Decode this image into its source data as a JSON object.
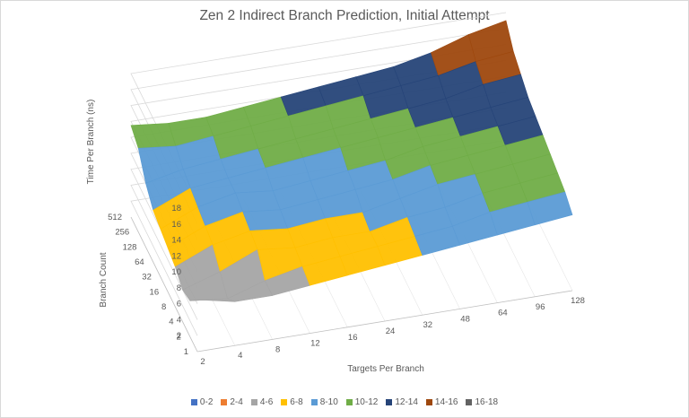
{
  "chart_data": {
    "type": "surface",
    "title": "Zen 2 Indirect Branch Prediction, Initial Attempt",
    "xlabel": "Targets Per Branch",
    "ylabel": "Branch Count",
    "zlabel": "Time Per Branch (ns)",
    "x_categories": [
      "2",
      "4",
      "8",
      "12",
      "16",
      "24",
      "32",
      "48",
      "64",
      "96",
      "128"
    ],
    "y_categories": [
      "1",
      "2",
      "4",
      "8",
      "16",
      "32",
      "64",
      "128",
      "256",
      "512"
    ],
    "z_ticks": [
      "2",
      "4",
      "6",
      "8",
      "10",
      "12",
      "14",
      "16",
      "18"
    ],
    "zlim": [
      0,
      18
    ],
    "legend_position": "bottom",
    "bands": [
      {
        "label": "0-2",
        "color": "#4472c4"
      },
      {
        "label": "2-4",
        "color": "#ed7d31"
      },
      {
        "label": "4-6",
        "color": "#a5a5a5"
      },
      {
        "label": "6-8",
        "color": "#ffc000"
      },
      {
        "label": "8-10",
        "color": "#5b9bd5"
      },
      {
        "label": "10-12",
        "color": "#70ad47"
      },
      {
        "label": "12-14",
        "color": "#264478"
      },
      {
        "label": "14-16",
        "color": "#9e480e"
      },
      {
        "label": "16-18",
        "color": "#636363"
      }
    ],
    "values": [
      [
        6.5,
        4.5,
        4.0,
        5.0,
        5.5,
        6.0,
        6.5,
        8.0,
        10.5,
        11.5
      ],
      [
        5.5,
        4.0,
        5.5,
        7.0,
        7.5,
        8.0,
        8.5,
        9.0,
        10.0,
        11.0
      ],
      [
        5.5,
        5.5,
        7.5,
        8.0,
        8.5,
        9.0,
        9.0,
        9.5,
        10.5,
        11.0
      ],
      [
        6.0,
        6.5,
        7.0,
        7.5,
        8.0,
        8.5,
        9.5,
        10.0,
        11.0,
        11.5
      ],
      [
        6.5,
        7.0,
        7.5,
        8.0,
        8.5,
        9.0,
        10.0,
        10.5,
        11.5,
        12.0
      ],
      [
        7.0,
        7.5,
        7.5,
        8.0,
        9.0,
        9.5,
        10.5,
        11.0,
        12.0,
        12.5
      ],
      [
        7.5,
        8.0,
        8.5,
        9.0,
        9.5,
        10.0,
        11.0,
        11.5,
        12.5,
        13.0
      ],
      [
        8.0,
        8.5,
        9.0,
        10.0,
        10.5,
        11.0,
        11.5,
        12.0,
        13.0,
        13.5
      ],
      [
        8.5,
        9.5,
        10.0,
        10.5,
        11.0,
        11.5,
        12.0,
        12.5,
        13.5,
        14.5
      ],
      [
        9.0,
        10.0,
        10.5,
        11.0,
        11.5,
        12.0,
        12.5,
        13.5,
        14.5,
        16.0
      ],
      [
        9.5,
        10.5,
        11.0,
        11.5,
        12.0,
        12.5,
        13.0,
        14.0,
        15.0,
        17.0
      ]
    ]
  }
}
